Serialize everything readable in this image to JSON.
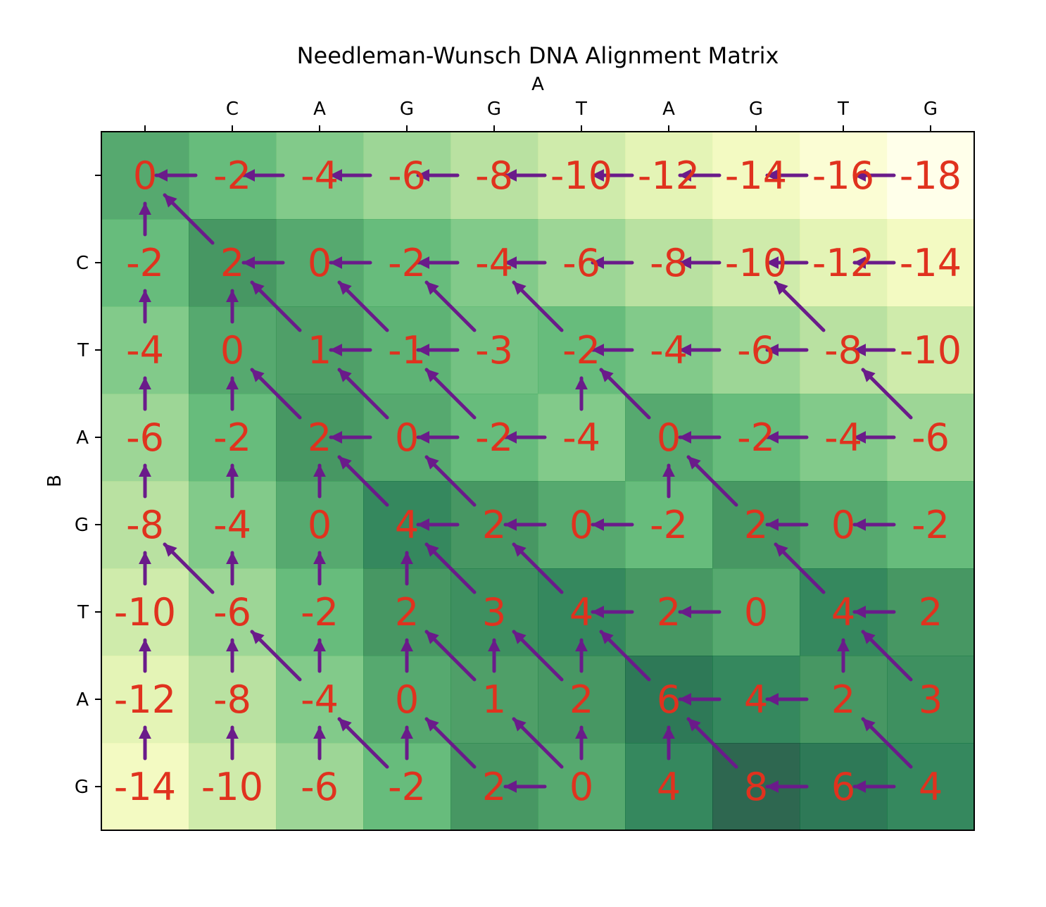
{
  "chart_data": {
    "type": "heatmap",
    "title": "Needleman-Wunsch DNA Alignment Matrix",
    "xlabel": "A",
    "ylabel": "B",
    "x_ticks": [
      "",
      "C",
      "A",
      "G",
      "G",
      "T",
      "A",
      "G",
      "T",
      "G"
    ],
    "y_ticks": [
      "",
      "C",
      "T",
      "A",
      "G",
      "T",
      "A",
      "G"
    ],
    "colormap": "YlGn",
    "value_range": [
      -18,
      8
    ],
    "colors": {
      "cell_text": "#e0321e",
      "arrow": "#6a1b8a"
    },
    "values": [
      [
        0,
        -2,
        -4,
        -6,
        -8,
        -10,
        -12,
        -14,
        -16,
        -18
      ],
      [
        -2,
        2,
        0,
        -2,
        -4,
        -6,
        -8,
        -10,
        -12,
        -14
      ],
      [
        -4,
        0,
        1,
        -1,
        -3,
        -2,
        -4,
        -6,
        -8,
        -10
      ],
      [
        -6,
        -2,
        2,
        0,
        -2,
        -4,
        0,
        -2,
        -4,
        -6
      ],
      [
        -8,
        -4,
        0,
        4,
        2,
        0,
        -2,
        2,
        0,
        -2
      ],
      [
        -10,
        -6,
        -2,
        2,
        3,
        4,
        2,
        0,
        4,
        2
      ],
      [
        -12,
        -8,
        -4,
        0,
        1,
        2,
        6,
        4,
        2,
        3
      ],
      [
        -14,
        -10,
        -6,
        -2,
        2,
        0,
        4,
        8,
        6,
        4
      ]
    ],
    "traceback_arrows": [
      [
        "",
        "L",
        "L",
        "L",
        "L",
        "L",
        "L",
        "L",
        "L",
        "L"
      ],
      [
        "U",
        "D",
        "L",
        "L",
        "L",
        "L",
        "L",
        "L",
        "L",
        "L"
      ],
      [
        "U",
        "U",
        "D",
        "LD",
        "LD",
        "D",
        "L",
        "L",
        "LD",
        "L"
      ],
      [
        "U",
        "U",
        "D",
        "LD",
        "LD",
        "LU",
        "D",
        "L",
        "L",
        "LD"
      ],
      [
        "U",
        "U",
        "U",
        "D",
        "LD",
        "L",
        "LU",
        "D",
        "L",
        "L"
      ],
      [
        "U",
        "UD",
        "U",
        "U",
        "D",
        "D",
        "L",
        "L",
        "D",
        "L"
      ],
      [
        "U",
        "U",
        "UD",
        "U",
        "UD",
        "UD",
        "D",
        "L",
        "LU",
        "D"
      ],
      [
        "U",
        "U",
        "U",
        "UD",
        "D",
        "LUD",
        "U",
        "D",
        "L",
        "LD"
      ]
    ]
  }
}
